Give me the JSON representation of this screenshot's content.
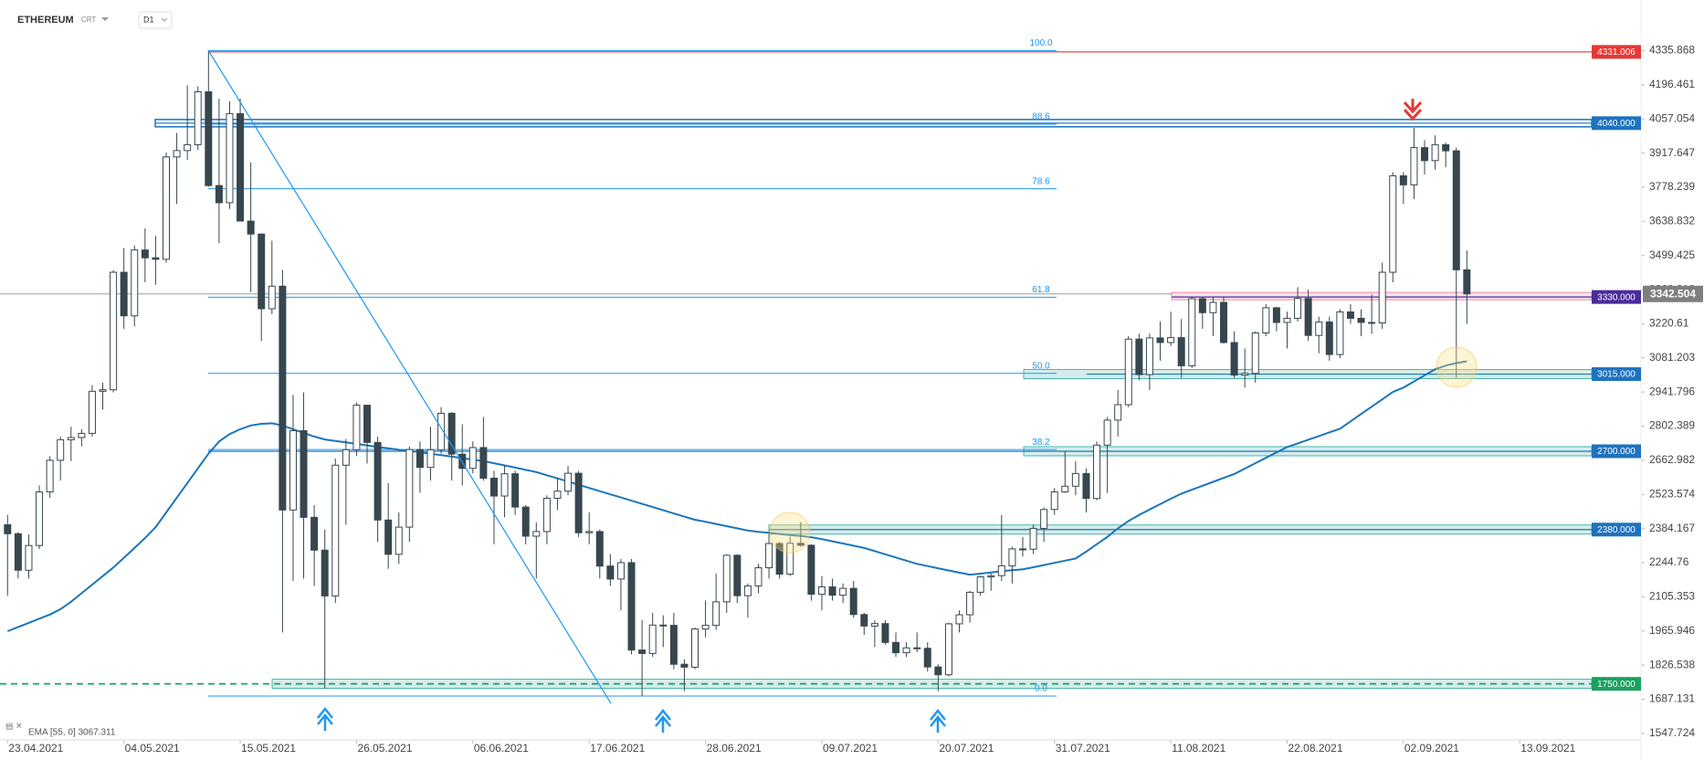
{
  "chart_data": {
    "type": "candlestick",
    "title": "ETHEREUM",
    "instrument_type": "CRT",
    "interval": "D1",
    "x": [
      "23.04.2021",
      "24.04.2021",
      "25.04.2021",
      "26.04.2021",
      "27.04.2021",
      "28.04.2021",
      "29.04.2021",
      "30.04.2021",
      "01.05.2021",
      "02.05.2021",
      "03.05.2021",
      "04.05.2021",
      "05.05.2021",
      "06.05.2021",
      "07.05.2021",
      "08.05.2021",
      "09.05.2021",
      "10.05.2021",
      "11.05.2021",
      "12.05.2021",
      "13.05.2021",
      "14.05.2021",
      "15.05.2021",
      "16.05.2021",
      "17.05.2021",
      "18.05.2021",
      "19.05.2021",
      "20.05.2021",
      "21.05.2021",
      "22.05.2021",
      "23.05.2021",
      "24.05.2021",
      "25.05.2021",
      "26.05.2021",
      "27.05.2021",
      "28.05.2021",
      "29.05.2021",
      "30.05.2021",
      "31.05.2021",
      "01.06.2021",
      "02.06.2021",
      "03.06.2021",
      "04.06.2021",
      "05.06.2021",
      "06.06.2021",
      "07.06.2021",
      "08.06.2021",
      "09.06.2021",
      "10.06.2021",
      "11.06.2021",
      "12.06.2021",
      "13.06.2021",
      "14.06.2021",
      "15.06.2021",
      "16.06.2021",
      "17.06.2021",
      "18.06.2021",
      "19.06.2021",
      "20.06.2021",
      "21.06.2021",
      "22.06.2021",
      "23.06.2021",
      "24.06.2021",
      "25.06.2021",
      "26.06.2021",
      "27.06.2021",
      "28.06.2021",
      "29.06.2021",
      "30.06.2021",
      "01.07.2021",
      "02.07.2021",
      "03.07.2021",
      "04.07.2021",
      "05.07.2021",
      "06.07.2021",
      "07.07.2021",
      "08.07.2021",
      "09.07.2021",
      "10.07.2021",
      "11.07.2021",
      "12.07.2021",
      "13.07.2021",
      "14.07.2021",
      "15.07.2021",
      "16.07.2021",
      "17.07.2021",
      "18.07.2021",
      "19.07.2021",
      "20.07.2021",
      "21.07.2021",
      "22.07.2021",
      "23.07.2021",
      "24.07.2021",
      "25.07.2021",
      "26.07.2021",
      "27.07.2021",
      "28.07.2021",
      "29.07.2021",
      "30.07.2021",
      "31.07.2021",
      "01.08.2021",
      "02.08.2021",
      "03.08.2021",
      "04.08.2021",
      "05.08.2021",
      "06.08.2021",
      "07.08.2021",
      "08.08.2021",
      "09.08.2021",
      "10.08.2021",
      "11.08.2021",
      "12.08.2021",
      "13.08.2021",
      "14.08.2021",
      "15.08.2021",
      "16.08.2021",
      "17.08.2021",
      "18.08.2021",
      "19.08.2021",
      "20.08.2021",
      "21.08.2021",
      "22.08.2021",
      "23.08.2021",
      "24.08.2021",
      "25.08.2021",
      "26.08.2021",
      "27.08.2021",
      "28.08.2021",
      "29.08.2021",
      "30.08.2021",
      "31.08.2021",
      "01.09.2021",
      "02.09.2021",
      "03.09.2021",
      "04.09.2021",
      "05.09.2021",
      "06.09.2021",
      "07.09.2021",
      "08.09.2021",
      "09.09.2021",
      "10.09.2021",
      "11.09.2021",
      "12.09.2021",
      "13.09.2021"
    ],
    "candles": [
      [
        2400,
        2440,
        2110,
        2363
      ],
      [
        2363,
        2370,
        2180,
        2214
      ],
      [
        2214,
        2360,
        2180,
        2315
      ],
      [
        2315,
        2560,
        2300,
        2534
      ],
      [
        2534,
        2680,
        2510,
        2663
      ],
      [
        2663,
        2760,
        2580,
        2747
      ],
      [
        2747,
        2800,
        2660,
        2756
      ],
      [
        2756,
        2790,
        2720,
        2773
      ],
      [
        2773,
        2970,
        2760,
        2945
      ],
      [
        2945,
        2980,
        2870,
        2951
      ],
      [
        2951,
        3440,
        2940,
        3431
      ],
      [
        3431,
        3530,
        3200,
        3253
      ],
      [
        3253,
        3540,
        3210,
        3522
      ],
      [
        3522,
        3610,
        3390,
        3490
      ],
      [
        3490,
        3580,
        3380,
        3484
      ],
      [
        3484,
        3920,
        3470,
        3902
      ],
      [
        3902,
        4000,
        3710,
        3928
      ],
      [
        3928,
        4195,
        3890,
        3952
      ],
      [
        3952,
        4190,
        3930,
        4168
      ],
      [
        4168,
        4336,
        3780,
        3785
      ],
      [
        3785,
        4140,
        3550,
        3715
      ],
      [
        3715,
        4130,
        3690,
        4079
      ],
      [
        4079,
        4140,
        3640,
        3640
      ],
      [
        3640,
        3880,
        3350,
        3587
      ],
      [
        3587,
        3590,
        3150,
        3282
      ],
      [
        3282,
        3560,
        3260,
        3374
      ],
      [
        3374,
        3440,
        1960,
        2460
      ],
      [
        2460,
        2930,
        2170,
        2784
      ],
      [
        2784,
        2940,
        2180,
        2430
      ],
      [
        2430,
        2480,
        2150,
        2296
      ],
      [
        2296,
        2380,
        1730,
        2109
      ],
      [
        2109,
        2670,
        2080,
        2643
      ],
      [
        2643,
        2750,
        2400,
        2706
      ],
      [
        2706,
        2900,
        2680,
        2888
      ],
      [
        2888,
        2890,
        2650,
        2736
      ],
      [
        2736,
        2760,
        2330,
        2419
      ],
      [
        2419,
        2570,
        2220,
        2279
      ],
      [
        2279,
        2450,
        2240,
        2390
      ],
      [
        2390,
        2720,
        2330,
        2707
      ],
      [
        2707,
        2740,
        2530,
        2634
      ],
      [
        2634,
        2800,
        2580,
        2706
      ],
      [
        2706,
        2880,
        2690,
        2855
      ],
      [
        2855,
        2860,
        2580,
        2688
      ],
      [
        2688,
        2810,
        2560,
        2630
      ],
      [
        2630,
        2740,
        2610,
        2715
      ],
      [
        2715,
        2840,
        2580,
        2590
      ],
      [
        2590,
        2620,
        2320,
        2517
      ],
      [
        2517,
        2640,
        2430,
        2608
      ],
      [
        2608,
        2620,
        2440,
        2472
      ],
      [
        2472,
        2480,
        2320,
        2353
      ],
      [
        2353,
        2410,
        2180,
        2372
      ],
      [
        2372,
        2520,
        2320,
        2508
      ],
      [
        2508,
        2590,
        2460,
        2537
      ],
      [
        2537,
        2640,
        2520,
        2610
      ],
      [
        2610,
        2620,
        2350,
        2367
      ],
      [
        2367,
        2450,
        2320,
        2372
      ],
      [
        2372,
        2380,
        2180,
        2231
      ],
      [
        2231,
        2280,
        2150,
        2178
      ],
      [
        2178,
        2260,
        2050,
        2245
      ],
      [
        2245,
        2260,
        1870,
        1888
      ],
      [
        1888,
        2010,
        1700,
        1874
      ],
      [
        1874,
        2040,
        1860,
        1990
      ],
      [
        1990,
        2030,
        1900,
        1989
      ],
      [
        1989,
        2040,
        1810,
        1830
      ],
      [
        1830,
        1850,
        1720,
        1818
      ],
      [
        1818,
        1980,
        1810,
        1974
      ],
      [
        1974,
        2090,
        1940,
        1989
      ],
      [
        1989,
        2200,
        1970,
        2085
      ],
      [
        2085,
        2280,
        2040,
        2275
      ],
      [
        2275,
        2280,
        2080,
        2110
      ],
      [
        2110,
        2160,
        2020,
        2150
      ],
      [
        2150,
        2240,
        2120,
        2224
      ],
      [
        2224,
        2360,
        2180,
        2323
      ],
      [
        2323,
        2330,
        2180,
        2198
      ],
      [
        2198,
        2350,
        2190,
        2324
      ],
      [
        2324,
        2410,
        2310,
        2316
      ],
      [
        2316,
        2320,
        2090,
        2116
      ],
      [
        2116,
        2190,
        2050,
        2146
      ],
      [
        2146,
        2180,
        2090,
        2112
      ],
      [
        2112,
        2160,
        2080,
        2140
      ],
      [
        2140,
        2170,
        2020,
        2033
      ],
      [
        2033,
        2040,
        1950,
        1986
      ],
      [
        1986,
        2010,
        1900,
        1996
      ],
      [
        1996,
        2010,
        1910,
        1919
      ],
      [
        1919,
        1960,
        1860,
        1877
      ],
      [
        1877,
        1920,
        1860,
        1897
      ],
      [
        1897,
        1960,
        1880,
        1895
      ],
      [
        1895,
        1920,
        1800,
        1819
      ],
      [
        1819,
        1830,
        1720,
        1787
      ],
      [
        1787,
        2000,
        1780,
        1995
      ],
      [
        1995,
        2050,
        1960,
        2032
      ],
      [
        2032,
        2130,
        2000,
        2124
      ],
      [
        2124,
        2190,
        2110,
        2187
      ],
      [
        2187,
        2200,
        2130,
        2192
      ],
      [
        2192,
        2440,
        2170,
        2232
      ],
      [
        2232,
        2310,
        2160,
        2301
      ],
      [
        2301,
        2350,
        2270,
        2300
      ],
      [
        2300,
        2400,
        2280,
        2385
      ],
      [
        2385,
        2470,
        2330,
        2462
      ],
      [
        2462,
        2550,
        2440,
        2534
      ],
      [
        2534,
        2700,
        2530,
        2557
      ],
      [
        2557,
        2660,
        2520,
        2609
      ],
      [
        2609,
        2630,
        2450,
        2507
      ],
      [
        2507,
        2740,
        2500,
        2725
      ],
      [
        2725,
        2840,
        2530,
        2827
      ],
      [
        2827,
        2950,
        2760,
        2890
      ],
      [
        2890,
        3170,
        2880,
        3158
      ],
      [
        3158,
        3180,
        2990,
        3013
      ],
      [
        3013,
        3180,
        2950,
        3163
      ],
      [
        3163,
        3230,
        3070,
        3144
      ],
      [
        3144,
        3270,
        3130,
        3164
      ],
      [
        3164,
        3240,
        3000,
        3049
      ],
      [
        3049,
        3330,
        3040,
        3323
      ],
      [
        3323,
        3330,
        3200,
        3266
      ],
      [
        3266,
        3330,
        3170,
        3308
      ],
      [
        3308,
        3330,
        3140,
        3144
      ],
      [
        3144,
        3190,
        3000,
        3011
      ],
      [
        3011,
        3120,
        2960,
        3018
      ],
      [
        3018,
        3190,
        2980,
        3183
      ],
      [
        3183,
        3300,
        3170,
        3286
      ],
      [
        3286,
        3290,
        3190,
        3226
      ],
      [
        3226,
        3270,
        3120,
        3243
      ],
      [
        3243,
        3370,
        3230,
        3324
      ],
      [
        3324,
        3360,
        3150,
        3173
      ],
      [
        3173,
        3250,
        3100,
        3228
      ],
      [
        3228,
        3250,
        3070,
        3095
      ],
      [
        3095,
        3280,
        3080,
        3269
      ],
      [
        3269,
        3300,
        3220,
        3243
      ],
      [
        3243,
        3280,
        3170,
        3226
      ],
      [
        3226,
        3340,
        3180,
        3224
      ],
      [
        3224,
        3470,
        3200,
        3431
      ],
      [
        3431,
        3840,
        3390,
        3825
      ],
      [
        3825,
        3840,
        3710,
        3788
      ],
      [
        3788,
        4020,
        3730,
        3940
      ],
      [
        3940,
        3970,
        3830,
        3887
      ],
      [
        3887,
        3990,
        3850,
        3952
      ],
      [
        3952,
        3960,
        3860,
        3927
      ],
      [
        3927,
        3940,
        3000,
        3441
      ],
      [
        3441,
        3520,
        3220,
        3342.504
      ],
      null,
      null,
      null,
      null,
      null
    ],
    "up_color": "#ffffff",
    "down_color": "#37474f",
    "edge_color": "#37474f",
    "ema": {
      "name": "EMA [55, 0] 3067.311",
      "color": "#1b75bb",
      "values": [
        1965,
        1982,
        1999,
        2016,
        2033,
        2055,
        2085,
        2120,
        2155,
        2190,
        2225,
        2265,
        2305,
        2345,
        2390,
        2450,
        2510,
        2570,
        2630,
        2690,
        2740,
        2770,
        2790,
        2805,
        2812,
        2814,
        2805,
        2790,
        2775,
        2760,
        2748,
        2742,
        2736,
        2730,
        2724,
        2717,
        2712,
        2706,
        2701,
        2696,
        2690,
        2684,
        2678,
        2672,
        2666,
        2660,
        2651,
        2642,
        2633,
        2624,
        2615,
        2602,
        2589,
        2576,
        2563,
        2550,
        2537,
        2524,
        2511,
        2498,
        2485,
        2472,
        2459,
        2446,
        2433,
        2420,
        2412,
        2403,
        2394,
        2385,
        2376,
        2371,
        2367,
        2362,
        2358,
        2354,
        2349,
        2341,
        2332,
        2323,
        2314,
        2305,
        2292,
        2279,
        2266,
        2253,
        2240,
        2231,
        2222,
        2213,
        2204,
        2196,
        2200,
        2205,
        2210,
        2214,
        2218,
        2226,
        2235,
        2244,
        2253,
        2262,
        2290,
        2320,
        2350,
        2385,
        2415,
        2440,
        2462,
        2484,
        2506,
        2527,
        2543,
        2559,
        2575,
        2591,
        2607,
        2629,
        2651,
        2673,
        2695,
        2717,
        2732,
        2747,
        2762,
        2777,
        2792,
        2822,
        2852,
        2882,
        2912,
        2942,
        2960,
        2985,
        3010,
        3035,
        3050,
        3060,
        3067.311,
        null,
        null,
        null,
        null,
        null
      ]
    },
    "ylim": [
      1521,
      4543
    ],
    "yticks": [
      4335.868,
      4196.461,
      4057.054,
      3917.647,
      3778.239,
      3638.832,
      3499.425,
      3360.018,
      3220.61,
      3081.203,
      2941.796,
      2802.389,
      2662.982,
      2523.574,
      2384.167,
      2244.76,
      2105.353,
      1965.946,
      1826.538,
      1687.131,
      1547.724
    ],
    "levels": [
      {
        "value": 4331.006,
        "label": "4331.006",
        "color": "#e53935"
      },
      {
        "value": 4040,
        "label": "4040.000",
        "color": "#1e73be"
      },
      {
        "value": 3330,
        "label": "3330.000",
        "color": "#4a2c9c"
      },
      {
        "value": 3015,
        "label": "3015.000",
        "color": "#1e73be"
      },
      {
        "value": 2700,
        "label": "2700.000",
        "color": "#1e73be"
      },
      {
        "value": 2380,
        "label": "2380.000",
        "color": "#1e73be"
      },
      {
        "value": 1750,
        "label": "1750.000",
        "color": "#1aa260"
      }
    ],
    "fib": {
      "high": 4336,
      "low": 1700,
      "color": "#2196f3",
      "levels": [
        {
          "value": 100,
          "label": "100.0"
        },
        88.6,
        78.6,
        61.8,
        {
          "value": 50,
          "label": "50.0"
        },
        38.2,
        {
          "value": 0,
          "label": "0.0"
        }
      ]
    }
  }
}
